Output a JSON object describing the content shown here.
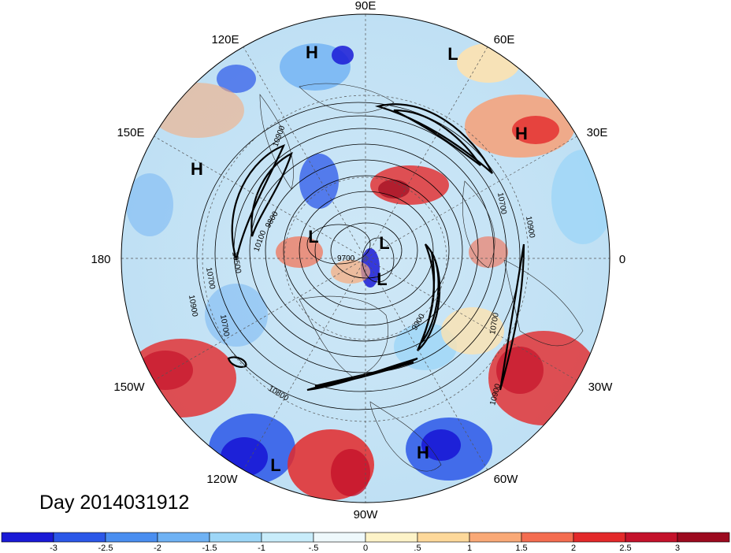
{
  "title": "Day 2014031912",
  "longitude_labels": [
    "90E",
    "60E",
    "30E",
    "0",
    "30W",
    "60W",
    "90W",
    "120W",
    "150W",
    "180",
    "150E",
    "120E"
  ],
  "pressure_systems": [
    {
      "label": "H",
      "lon": "120E"
    },
    {
      "label": "L",
      "lon": "60E"
    },
    {
      "label": "H",
      "lon": "30E"
    },
    {
      "label": "H",
      "lon": "150E"
    },
    {
      "label": "L",
      "lon": "150E"
    },
    {
      "label": "L",
      "lon": "60E"
    },
    {
      "label": "L",
      "lon": "60W"
    },
    {
      "label": "H",
      "lon": "60W"
    },
    {
      "label": "L",
      "lon": "120W"
    }
  ],
  "contour_labels": [
    "10900",
    "10900",
    "10700",
    "10700",
    "10500",
    "10100",
    "9800",
    "9700",
    "9900",
    "10800",
    "10700",
    "10900",
    "10700",
    "10900"
  ],
  "colorbar": {
    "ticks": [
      "-3",
      "-2.5",
      "-2",
      "-1.5",
      "-1",
      "-.5",
      "0",
      ".5",
      "1",
      "1.5",
      "2",
      "2.5",
      "3"
    ],
    "colors": [
      "#1a1ad6",
      "#2b57e8",
      "#4a8ef0",
      "#6fb2f4",
      "#9dd6f7",
      "#c8ecfa",
      "#eef8fb",
      "#fdf3c8",
      "#fdd89a",
      "#f9a977",
      "#f46d50",
      "#e3292a",
      "#c4122b",
      "#9c0a1f"
    ]
  }
}
